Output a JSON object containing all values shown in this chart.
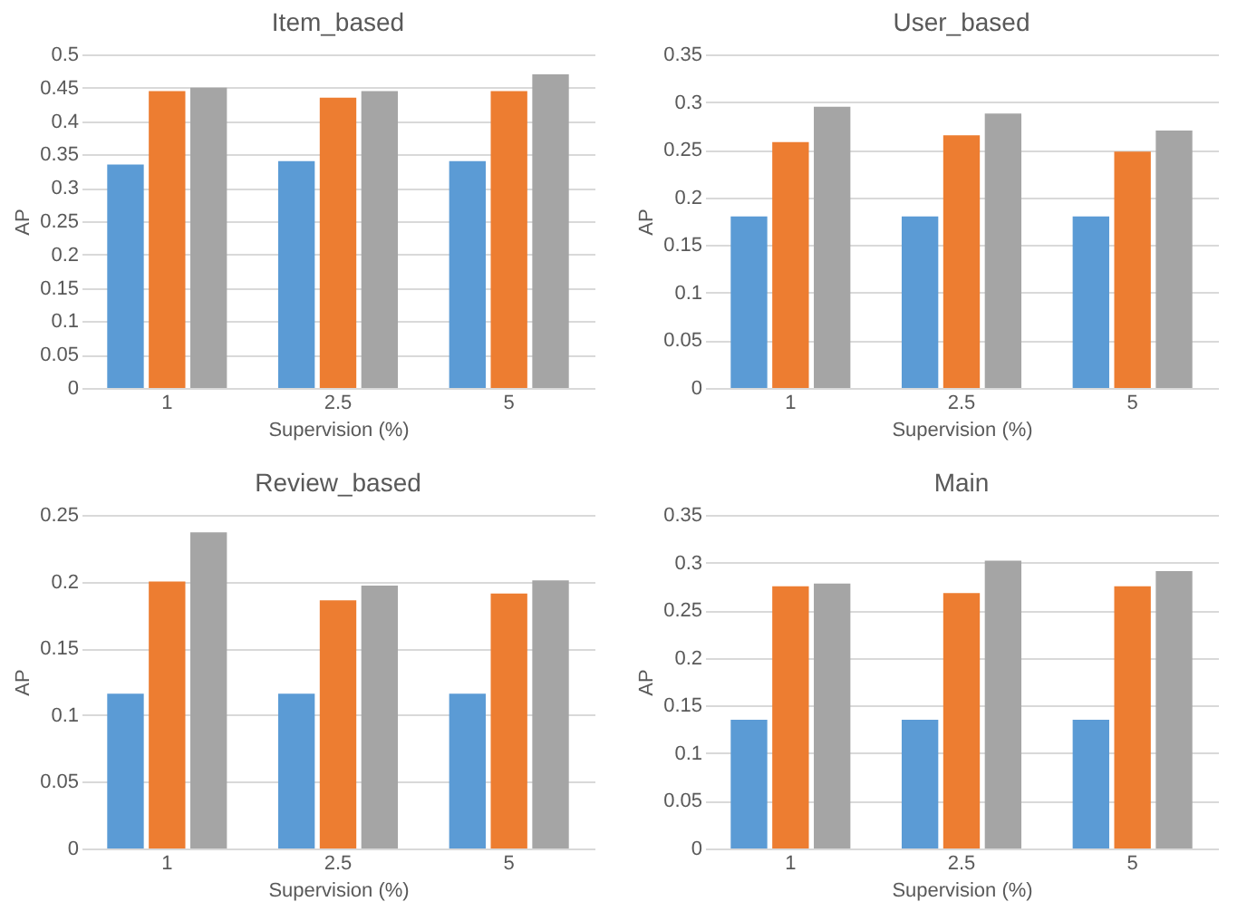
{
  "chart_data": [
    {
      "type": "bar",
      "title": "Item_based",
      "xlabel": "Supervision (%)",
      "ylabel": "AP",
      "categories": [
        "1",
        "2.5",
        "5"
      ],
      "series": [
        {
          "color": "#5b9bd5",
          "values": [
            0.335,
            0.34,
            0.34
          ]
        },
        {
          "color": "#ed7d31",
          "values": [
            0.445,
            0.435,
            0.445
          ]
        },
        {
          "color": "#a5a5a5",
          "values": [
            0.45,
            0.445,
            0.47
          ]
        }
      ],
      "ylim": [
        0,
        0.5
      ],
      "yticks": [
        0,
        0.05,
        0.1,
        0.15,
        0.2,
        0.25,
        0.3,
        0.35,
        0.4,
        0.45,
        0.5
      ],
      "grid": "y",
      "legend": false
    },
    {
      "type": "bar",
      "title": "User_based",
      "xlabel": "Supervision (%)",
      "ylabel": "AP",
      "categories": [
        "1",
        "2.5",
        "5"
      ],
      "series": [
        {
          "color": "#5b9bd5",
          "values": [
            0.18,
            0.18,
            0.18
          ]
        },
        {
          "color": "#ed7d31",
          "values": [
            0.258,
            0.265,
            0.248
          ]
        },
        {
          "color": "#a5a5a5",
          "values": [
            0.295,
            0.288,
            0.27
          ]
        }
      ],
      "ylim": [
        0,
        0.35
      ],
      "yticks": [
        0,
        0.05,
        0.1,
        0.15,
        0.2,
        0.25,
        0.3,
        0.35
      ],
      "grid": "y",
      "legend": false
    },
    {
      "type": "bar",
      "title": "Review_based",
      "xlabel": "Supervision (%)",
      "ylabel": "AP",
      "categories": [
        "1",
        "2.5",
        "5"
      ],
      "series": [
        {
          "color": "#5b9bd5",
          "values": [
            0.116,
            0.116,
            0.116
          ]
        },
        {
          "color": "#ed7d31",
          "values": [
            0.2,
            0.186,
            0.191
          ]
        },
        {
          "color": "#a5a5a5",
          "values": [
            0.237,
            0.197,
            0.201
          ]
        }
      ],
      "ylim": [
        0,
        0.25
      ],
      "yticks": [
        0,
        0.05,
        0.1,
        0.15,
        0.2,
        0.25
      ],
      "grid": "y",
      "legend": false
    },
    {
      "type": "bar",
      "title": "Main",
      "xlabel": "Supervision (%)",
      "ylabel": "AP",
      "categories": [
        "1",
        "2.5",
        "5"
      ],
      "series": [
        {
          "color": "#5b9bd5",
          "values": [
            0.135,
            0.135,
            0.135
          ]
        },
        {
          "color": "#ed7d31",
          "values": [
            0.275,
            0.268,
            0.275
          ]
        },
        {
          "color": "#a5a5a5",
          "values": [
            0.278,
            0.302,
            0.291
          ]
        }
      ],
      "ylim": [
        0,
        0.35
      ],
      "yticks": [
        0,
        0.05,
        0.1,
        0.15,
        0.2,
        0.25,
        0.3,
        0.35
      ],
      "grid": "y",
      "legend": false
    }
  ]
}
